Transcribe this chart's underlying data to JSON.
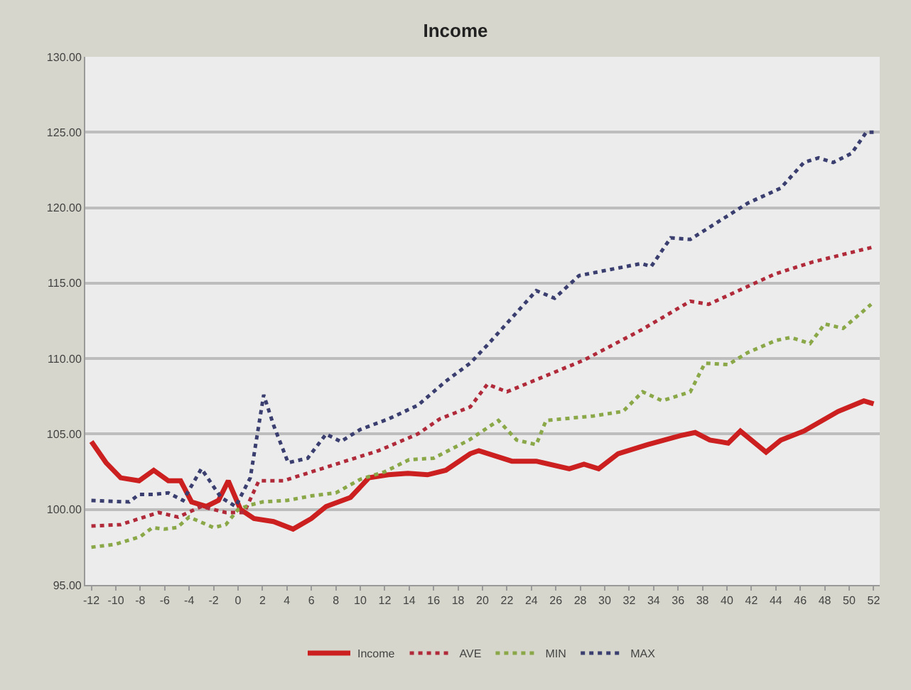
{
  "chart_data": {
    "type": "line",
    "title": "Income",
    "xlim": [
      -12.5,
      52.5
    ],
    "xticks": [
      -12,
      -10,
      -8,
      -6,
      -4,
      -2,
      0,
      2,
      4,
      6,
      8,
      10,
      12,
      14,
      16,
      18,
      20,
      22,
      24,
      26,
      28,
      30,
      32,
      34,
      36,
      38,
      40,
      42,
      44,
      46,
      48,
      50,
      52
    ],
    "ylim": [
      95,
      130
    ],
    "yticks": [
      {
        "value": 95,
        "label": "95.00"
      },
      {
        "value": 100,
        "label": "100.00"
      },
      {
        "value": 105,
        "label": "105.00"
      },
      {
        "value": 110,
        "label": "110.00"
      },
      {
        "value": 115,
        "label": "115.00"
      },
      {
        "value": 120,
        "label": "120.00"
      },
      {
        "value": 125,
        "label": "125.00"
      },
      {
        "value": 130,
        "label": "130.00"
      }
    ],
    "grid": "y",
    "legend": "bottom",
    "marker": "none",
    "series": [
      {
        "name": "Income",
        "color": "#cc1f1f",
        "line_style": "solid",
        "x": [
          -12,
          -10.8,
          -9.6,
          -8.1,
          -6.9,
          -5.7,
          -4.7,
          -3.8,
          -2.6,
          -1.6,
          -0.8,
          0.2,
          1.3,
          2.9,
          4.5,
          6,
          7.2,
          9.2,
          10.7,
          12.3,
          13.9,
          15.5,
          17,
          19,
          19.7,
          22.4,
          24.4,
          27.1,
          28.3,
          29.5,
          31.1,
          33.5,
          36.2,
          37.4,
          38.6,
          40.1,
          41.1,
          43.2,
          44.4,
          46.3,
          49.1,
          51.2,
          52
        ],
        "values": [
          104.5,
          103.1,
          102.1,
          101.9,
          102.6,
          101.9,
          101.9,
          100.5,
          100.2,
          100.6,
          101.9,
          100,
          99.4,
          99.2,
          98.7,
          99.4,
          100.2,
          100.8,
          102.1,
          102.3,
          102.4,
          102.3,
          102.6,
          103.7,
          103.9,
          103.2,
          103.2,
          102.7,
          103.0,
          102.7,
          103.7,
          104.3,
          104.9,
          105.1,
          104.6,
          104.4,
          105.2,
          103.8,
          104.6,
          105.2,
          106.5,
          107.2,
          107
        ]
      },
      {
        "name": "AVE",
        "color": "#b02a3a",
        "line_style": "dotted",
        "x": [
          -12,
          -9.6,
          -6.5,
          -4.9,
          -3,
          -1,
          0.5,
          1.7,
          3.7,
          7.6,
          11.5,
          14.7,
          16.5,
          19,
          20.4,
          22,
          28.3,
          33,
          37,
          38.5,
          43.9,
          47,
          52
        ],
        "values": [
          98.9,
          99.0,
          99.8,
          99.5,
          100.2,
          99.8,
          99.8,
          101.9,
          101.9,
          102.9,
          103.9,
          105,
          106,
          106.8,
          108.3,
          107.8,
          109.9,
          111.9,
          113.8,
          113.6,
          115.6,
          116.4,
          117.4
        ]
      },
      {
        "name": "MIN",
        "color": "#8aa848",
        "line_style": "dotted",
        "x": [
          -12,
          -10,
          -8,
          -7,
          -6,
          -5,
          -4,
          -2,
          -1,
          0,
          1,
          2,
          4,
          6,
          8,
          10,
          12,
          14,
          16,
          18.9,
          21.3,
          22.8,
          24.4,
          25.2,
          29.1,
          31.5,
          33.1,
          34.7,
          37,
          38.2,
          40.1,
          41.7,
          44,
          45.2,
          46.8,
          48,
          49.5,
          51.8
        ],
        "values": [
          97.5,
          97.7,
          98.2,
          98.8,
          98.7,
          98.8,
          99.5,
          98.8,
          99.0,
          100,
          100.3,
          100.5,
          100.6,
          100.9,
          101.1,
          102,
          102.5,
          103.3,
          103.4,
          104.6,
          105.9,
          104.6,
          104.3,
          105.9,
          106.2,
          106.5,
          107.8,
          107.2,
          107.8,
          109.7,
          109.6,
          110.4,
          111.2,
          111.4,
          111.0,
          112.3,
          112,
          113.6
        ]
      },
      {
        "name": "MAX",
        "color": "#3a3f70",
        "line_style": "dotted",
        "x": [
          -12,
          -8.9,
          -8.1,
          -6.9,
          -5.7,
          -4.5,
          -3,
          -1.4,
          -0.2,
          1,
          2.1,
          2.9,
          4.1,
          5.7,
          7.2,
          8.4,
          10,
          12.3,
          14.7,
          17,
          19,
          20.4,
          24.4,
          25.9,
          27.9,
          33,
          33.8,
          35.4,
          37,
          41.7,
          44.4,
          46.3,
          47.5,
          48.7,
          50.2,
          51.4,
          52
        ],
        "values": [
          100.6,
          100.5,
          101,
          101,
          101.1,
          100.6,
          102.7,
          100.8,
          100.2,
          102.1,
          107.6,
          105.6,
          103.1,
          103.4,
          105,
          104.5,
          105.3,
          106,
          106.9,
          108.5,
          109.7,
          110.9,
          114.5,
          114,
          115.5,
          116.3,
          116.1,
          118,
          117.9,
          120.3,
          121.3,
          123,
          123.3,
          123,
          123.6,
          125,
          125
        ]
      }
    ]
  }
}
